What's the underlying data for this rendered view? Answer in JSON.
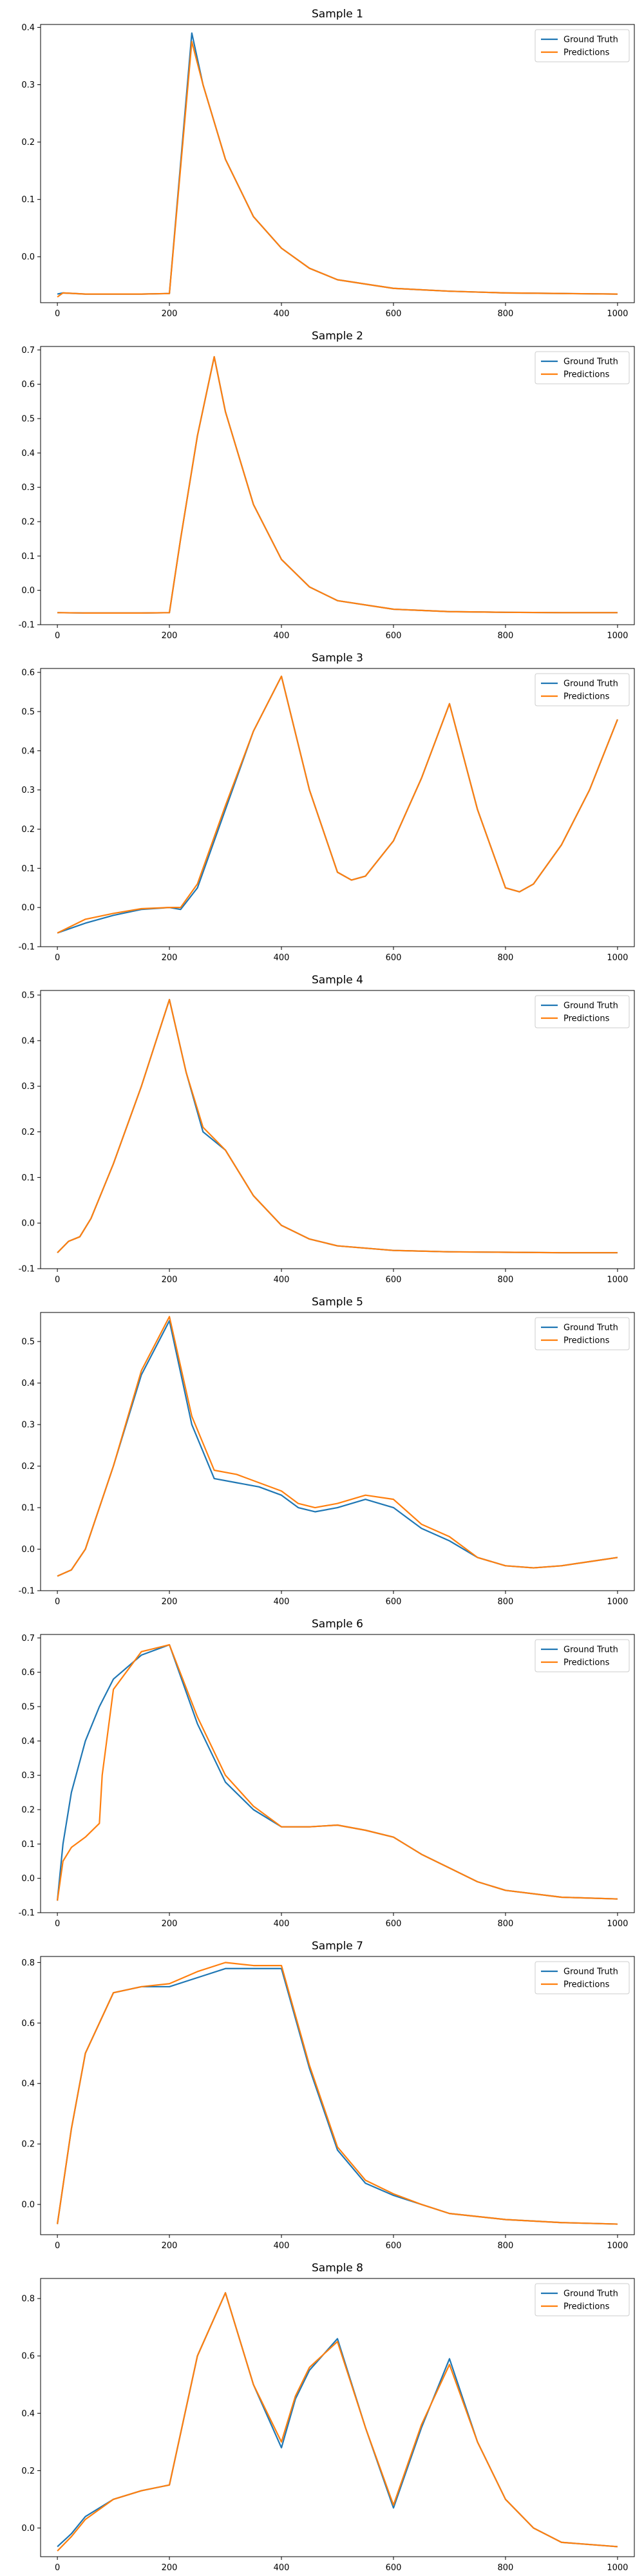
{
  "colors": {
    "ground_truth": "#1f77b4",
    "predictions": "#ff7f0e"
  },
  "chart_data": [
    {
      "type": "line",
      "title": "Sample 1",
      "legend": [
        "Ground Truth",
        "Predictions"
      ],
      "legend_position": "top-right",
      "grid": false,
      "xlim": [
        -30,
        1030
      ],
      "ylim": [
        -0.08,
        0.405
      ],
      "x_ticks": [
        0,
        200,
        400,
        600,
        800,
        1000
      ],
      "y_ticks": [
        0.0,
        0.1,
        0.2,
        0.3,
        0.4
      ],
      "series": [
        {
          "name": "Ground Truth",
          "x": [
            0,
            10,
            50,
            100,
            150,
            200,
            240,
            260,
            300,
            350,
            400,
            450,
            500,
            600,
            700,
            800,
            900,
            1000
          ],
          "y": [
            -0.065,
            -0.063,
            -0.065,
            -0.065,
            -0.065,
            -0.064,
            0.39,
            0.3,
            0.17,
            0.07,
            0.015,
            -0.02,
            -0.04,
            -0.055,
            -0.06,
            -0.063,
            -0.064,
            -0.065
          ]
        },
        {
          "name": "Predictions",
          "x": [
            0,
            10,
            50,
            100,
            150,
            200,
            240,
            260,
            300,
            350,
            400,
            450,
            500,
            600,
            700,
            800,
            900,
            1000
          ],
          "y": [
            -0.07,
            -0.063,
            -0.065,
            -0.065,
            -0.065,
            -0.064,
            0.375,
            0.3,
            0.17,
            0.07,
            0.015,
            -0.02,
            -0.04,
            -0.055,
            -0.06,
            -0.063,
            -0.064,
            -0.065
          ]
        }
      ]
    },
    {
      "type": "line",
      "title": "Sample 2",
      "legend": [
        "Ground Truth",
        "Predictions"
      ],
      "legend_position": "top-right",
      "grid": false,
      "xlim": [
        -30,
        1030
      ],
      "ylim": [
        -0.1,
        0.71
      ],
      "x_ticks": [
        0,
        200,
        400,
        600,
        800,
        1000
      ],
      "y_ticks": [
        -0.1,
        0.0,
        0.1,
        0.2,
        0.3,
        0.4,
        0.5,
        0.6,
        0.7
      ],
      "series": [
        {
          "name": "Ground Truth",
          "x": [
            0,
            50,
            100,
            150,
            200,
            220,
            250,
            280,
            300,
            350,
            400,
            450,
            500,
            600,
            700,
            800,
            900,
            1000
          ],
          "y": [
            -0.065,
            -0.066,
            -0.066,
            -0.066,
            -0.065,
            0.15,
            0.45,
            0.68,
            0.52,
            0.25,
            0.09,
            0.01,
            -0.03,
            -0.055,
            -0.062,
            -0.064,
            -0.065,
            -0.065
          ]
        },
        {
          "name": "Predictions",
          "x": [
            0,
            50,
            100,
            150,
            200,
            220,
            250,
            280,
            300,
            350,
            400,
            450,
            500,
            600,
            700,
            800,
            900,
            1000
          ],
          "y": [
            -0.065,
            -0.066,
            -0.066,
            -0.066,
            -0.065,
            0.15,
            0.45,
            0.68,
            0.52,
            0.25,
            0.09,
            0.01,
            -0.03,
            -0.055,
            -0.062,
            -0.064,
            -0.065,
            -0.065
          ]
        }
      ]
    },
    {
      "type": "line",
      "title": "Sample 3",
      "legend": [
        "Ground Truth",
        "Predictions"
      ],
      "legend_position": "top-right",
      "grid": false,
      "xlim": [
        -30,
        1030
      ],
      "ylim": [
        -0.1,
        0.61
      ],
      "x_ticks": [
        0,
        200,
        400,
        600,
        800,
        1000
      ],
      "y_ticks": [
        -0.1,
        0.0,
        0.1,
        0.2,
        0.3,
        0.4,
        0.5,
        0.6
      ],
      "series": [
        {
          "name": "Ground Truth",
          "x": [
            0,
            50,
            100,
            150,
            200,
            220,
            250,
            300,
            350,
            400,
            450,
            500,
            525,
            550,
            600,
            650,
            700,
            750,
            800,
            825,
            850,
            900,
            950,
            1000
          ],
          "y": [
            -0.065,
            -0.04,
            -0.02,
            -0.005,
            0.0,
            -0.005,
            0.05,
            0.25,
            0.45,
            0.59,
            0.3,
            0.09,
            0.07,
            0.08,
            0.17,
            0.33,
            0.52,
            0.25,
            0.05,
            0.04,
            0.06,
            0.16,
            0.3,
            0.48
          ]
        },
        {
          "name": "Predictions",
          "x": [
            0,
            50,
            100,
            150,
            200,
            220,
            250,
            300,
            350,
            400,
            450,
            500,
            525,
            550,
            600,
            650,
            700,
            750,
            800,
            825,
            850,
            900,
            950,
            1000
          ],
          "y": [
            -0.065,
            -0.03,
            -0.015,
            -0.003,
            0.0,
            0.0,
            0.06,
            0.26,
            0.45,
            0.59,
            0.3,
            0.09,
            0.07,
            0.08,
            0.17,
            0.33,
            0.52,
            0.25,
            0.05,
            0.04,
            0.06,
            0.16,
            0.3,
            0.48
          ]
        }
      ]
    },
    {
      "type": "line",
      "title": "Sample 4",
      "legend": [
        "Ground Truth",
        "Predictions"
      ],
      "legend_position": "top-right",
      "grid": false,
      "xlim": [
        -30,
        1030
      ],
      "ylim": [
        -0.1,
        0.51
      ],
      "x_ticks": [
        0,
        200,
        400,
        600,
        800,
        1000
      ],
      "y_ticks": [
        -0.1,
        0.0,
        0.1,
        0.2,
        0.3,
        0.4,
        0.5
      ],
      "series": [
        {
          "name": "Ground Truth",
          "x": [
            0,
            20,
            40,
            60,
            80,
            100,
            150,
            200,
            230,
            260,
            300,
            350,
            400,
            450,
            500,
            600,
            700,
            800,
            900,
            1000
          ],
          "y": [
            -0.065,
            -0.04,
            -0.03,
            0.01,
            0.07,
            0.13,
            0.3,
            0.49,
            0.33,
            0.2,
            0.16,
            0.06,
            -0.005,
            -0.035,
            -0.05,
            -0.06,
            -0.063,
            -0.064,
            -0.065,
            -0.065
          ]
        },
        {
          "name": "Predictions",
          "x": [
            0,
            20,
            40,
            60,
            80,
            100,
            150,
            200,
            230,
            260,
            300,
            350,
            400,
            450,
            500,
            600,
            700,
            800,
            900,
            1000
          ],
          "y": [
            -0.065,
            -0.04,
            -0.03,
            0.01,
            0.07,
            0.13,
            0.3,
            0.49,
            0.33,
            0.21,
            0.16,
            0.06,
            -0.005,
            -0.035,
            -0.05,
            -0.06,
            -0.063,
            -0.064,
            -0.065,
            -0.065
          ]
        }
      ]
    },
    {
      "type": "line",
      "title": "Sample 5",
      "legend": [
        "Ground Truth",
        "Predictions"
      ],
      "legend_position": "top-right",
      "grid": false,
      "xlim": [
        -30,
        1030
      ],
      "ylim": [
        -0.1,
        0.57
      ],
      "x_ticks": [
        0,
        200,
        400,
        600,
        800,
        1000
      ],
      "y_ticks": [
        -0.1,
        0.0,
        0.1,
        0.2,
        0.3,
        0.4,
        0.5
      ],
      "series": [
        {
          "name": "Ground Truth",
          "x": [
            0,
            25,
            50,
            100,
            150,
            200,
            240,
            280,
            320,
            360,
            400,
            430,
            460,
            500,
            550,
            600,
            650,
            700,
            750,
            800,
            850,
            900,
            950,
            1000
          ],
          "y": [
            -0.065,
            -0.05,
            0.0,
            0.2,
            0.42,
            0.55,
            0.3,
            0.17,
            0.16,
            0.15,
            0.13,
            0.1,
            0.09,
            0.1,
            0.12,
            0.1,
            0.05,
            0.02,
            -0.02,
            -0.04,
            -0.045,
            -0.04,
            -0.03,
            -0.02
          ]
        },
        {
          "name": "Predictions",
          "x": [
            0,
            25,
            50,
            100,
            150,
            200,
            240,
            280,
            320,
            360,
            400,
            430,
            460,
            500,
            550,
            600,
            650,
            700,
            750,
            800,
            850,
            900,
            950,
            1000
          ],
          "y": [
            -0.065,
            -0.05,
            0.0,
            0.2,
            0.43,
            0.56,
            0.32,
            0.19,
            0.18,
            0.16,
            0.14,
            0.11,
            0.1,
            0.11,
            0.13,
            0.12,
            0.06,
            0.03,
            -0.02,
            -0.04,
            -0.045,
            -0.04,
            -0.03,
            -0.02
          ]
        }
      ]
    },
    {
      "type": "line",
      "title": "Sample 6",
      "legend": [
        "Ground Truth",
        "Predictions"
      ],
      "legend_position": "top-right",
      "grid": false,
      "xlim": [
        -30,
        1030
      ],
      "ylim": [
        -0.1,
        0.71
      ],
      "x_ticks": [
        0,
        200,
        400,
        600,
        800,
        1000
      ],
      "y_ticks": [
        -0.1,
        0.0,
        0.1,
        0.2,
        0.3,
        0.4,
        0.5,
        0.6,
        0.7
      ],
      "series": [
        {
          "name": "Ground Truth",
          "x": [
            0,
            10,
            25,
            50,
            75,
            100,
            150,
            200,
            250,
            300,
            350,
            400,
            450,
            500,
            550,
            600,
            650,
            700,
            750,
            800,
            900,
            1000
          ],
          "y": [
            -0.065,
            0.1,
            0.25,
            0.4,
            0.5,
            0.58,
            0.65,
            0.68,
            0.45,
            0.28,
            0.2,
            0.15,
            0.15,
            0.155,
            0.14,
            0.12,
            0.07,
            0.03,
            -0.01,
            -0.035,
            -0.055,
            -0.06
          ]
        },
        {
          "name": "Predictions",
          "x": [
            0,
            10,
            25,
            50,
            75,
            80,
            100,
            150,
            200,
            250,
            300,
            350,
            400,
            450,
            500,
            550,
            600,
            650,
            700,
            750,
            800,
            900,
            1000
          ],
          "y": [
            -0.065,
            0.05,
            0.09,
            0.12,
            0.16,
            0.3,
            0.55,
            0.66,
            0.68,
            0.47,
            0.3,
            0.21,
            0.15,
            0.15,
            0.155,
            0.14,
            0.12,
            0.07,
            0.03,
            -0.01,
            -0.035,
            -0.055,
            -0.06
          ]
        }
      ]
    },
    {
      "type": "line",
      "title": "Sample 7",
      "legend": [
        "Ground Truth",
        "Predictions"
      ],
      "legend_position": "top-right",
      "grid": false,
      "xlim": [
        -30,
        1030
      ],
      "ylim": [
        -0.1,
        0.82
      ],
      "x_ticks": [
        0,
        200,
        400,
        600,
        800,
        1000
      ],
      "y_ticks": [
        0.0,
        0.2,
        0.4,
        0.6,
        0.8
      ],
      "series": [
        {
          "name": "Ground Truth",
          "x": [
            0,
            25,
            50,
            100,
            150,
            200,
            250,
            300,
            350,
            400,
            450,
            500,
            550,
            600,
            650,
            700,
            800,
            900,
            1000
          ],
          "y": [
            -0.065,
            0.25,
            0.5,
            0.7,
            0.72,
            0.72,
            0.75,
            0.78,
            0.78,
            0.78,
            0.45,
            0.18,
            0.07,
            0.03,
            0.0,
            -0.03,
            -0.05,
            -0.06,
            -0.065
          ]
        },
        {
          "name": "Predictions",
          "x": [
            0,
            25,
            50,
            100,
            150,
            200,
            250,
            300,
            350,
            400,
            450,
            500,
            550,
            600,
            650,
            700,
            800,
            900,
            1000
          ],
          "y": [
            -0.065,
            0.25,
            0.5,
            0.7,
            0.72,
            0.73,
            0.77,
            0.8,
            0.79,
            0.79,
            0.46,
            0.19,
            0.08,
            0.035,
            0.0,
            -0.03,
            -0.05,
            -0.06,
            -0.065
          ]
        }
      ]
    },
    {
      "type": "line",
      "title": "Sample 8",
      "legend": [
        "Ground Truth",
        "Predictions"
      ],
      "legend_position": "top-right",
      "grid": false,
      "xlim": [
        -30,
        1030
      ],
      "ylim": [
        -0.1,
        0.87
      ],
      "x_ticks": [
        0,
        200,
        400,
        600,
        800,
        1000
      ],
      "y_ticks": [
        0.0,
        0.2,
        0.4,
        0.6,
        0.8
      ],
      "series": [
        {
          "name": "Ground Truth",
          "x": [
            0,
            25,
            50,
            100,
            150,
            200,
            250,
            300,
            350,
            400,
            425,
            450,
            500,
            550,
            600,
            650,
            700,
            750,
            800,
            850,
            900,
            1000
          ],
          "y": [
            -0.065,
            -0.02,
            0.04,
            0.1,
            0.13,
            0.15,
            0.6,
            0.82,
            0.5,
            0.28,
            0.45,
            0.55,
            0.66,
            0.35,
            0.07,
            0.35,
            0.59,
            0.3,
            0.1,
            0.0,
            -0.05,
            -0.065
          ]
        },
        {
          "name": "Predictions",
          "x": [
            0,
            25,
            50,
            100,
            150,
            200,
            250,
            300,
            350,
            400,
            425,
            450,
            500,
            550,
            600,
            650,
            700,
            750,
            800,
            850,
            900,
            1000
          ],
          "y": [
            -0.08,
            -0.03,
            0.03,
            0.1,
            0.13,
            0.15,
            0.6,
            0.82,
            0.5,
            0.3,
            0.46,
            0.56,
            0.65,
            0.35,
            0.08,
            0.36,
            0.57,
            0.3,
            0.1,
            0.0,
            -0.05,
            -0.065
          ]
        }
      ]
    }
  ]
}
